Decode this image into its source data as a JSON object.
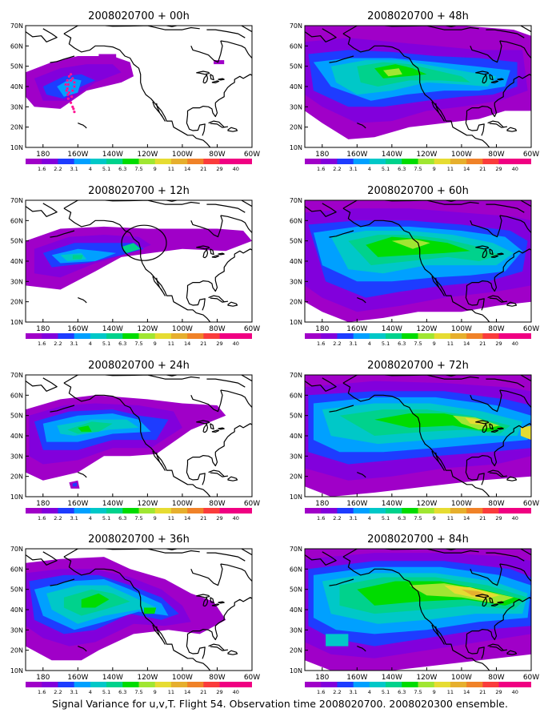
{
  "panels": [
    {
      "title": "2008020700 + 00h",
      "lead": "00h",
      "has_circle": false,
      "has_track": true
    },
    {
      "title": "2008020700 + 48h",
      "lead": "48h",
      "has_circle": false,
      "has_track": false
    },
    {
      "title": "2008020700 + 12h",
      "lead": "12h",
      "has_circle": true,
      "has_track": false
    },
    {
      "title": "2008020700 + 60h",
      "lead": "60h",
      "has_circle": false,
      "has_track": false
    },
    {
      "title": "2008020700 + 24h",
      "lead": "24h",
      "has_circle": false,
      "has_track": false
    },
    {
      "title": "2008020700 + 72h",
      "lead": "72h",
      "has_circle": false,
      "has_track": false
    },
    {
      "title": "2008020700 + 36h",
      "lead": "36h",
      "has_circle": false,
      "has_track": false
    },
    {
      "title": "2008020700 + 84h",
      "lead": "84h",
      "has_circle": false,
      "has_track": false
    }
  ],
  "lat_labels": [
    "70N",
    "60N",
    "50N",
    "40N",
    "30N",
    "20N",
    "10N"
  ],
  "lon_labels": [
    "180",
    "160W",
    "140W",
    "120W",
    "100W",
    "80W",
    "60W"
  ],
  "colorbar": {
    "labels": [
      "1.6",
      "2.2",
      "3.1",
      "4",
      "5.1",
      "6.3",
      "7.5",
      "9",
      "11",
      "14",
      "21",
      "29",
      "40"
    ],
    "colors": [
      "#a000c8",
      "#8200dc",
      "#1e3cff",
      "#00a0ff",
      "#00c8c8",
      "#00d28c",
      "#00dc00",
      "#a0e632",
      "#e6dc32",
      "#e6af2d",
      "#f08228",
      "#fa3c3c",
      "#f00082"
    ]
  },
  "caption": "Signal Variance for u,v,T. Flight 54. Observation time 2008020700. 2008020300 ensemble."
}
